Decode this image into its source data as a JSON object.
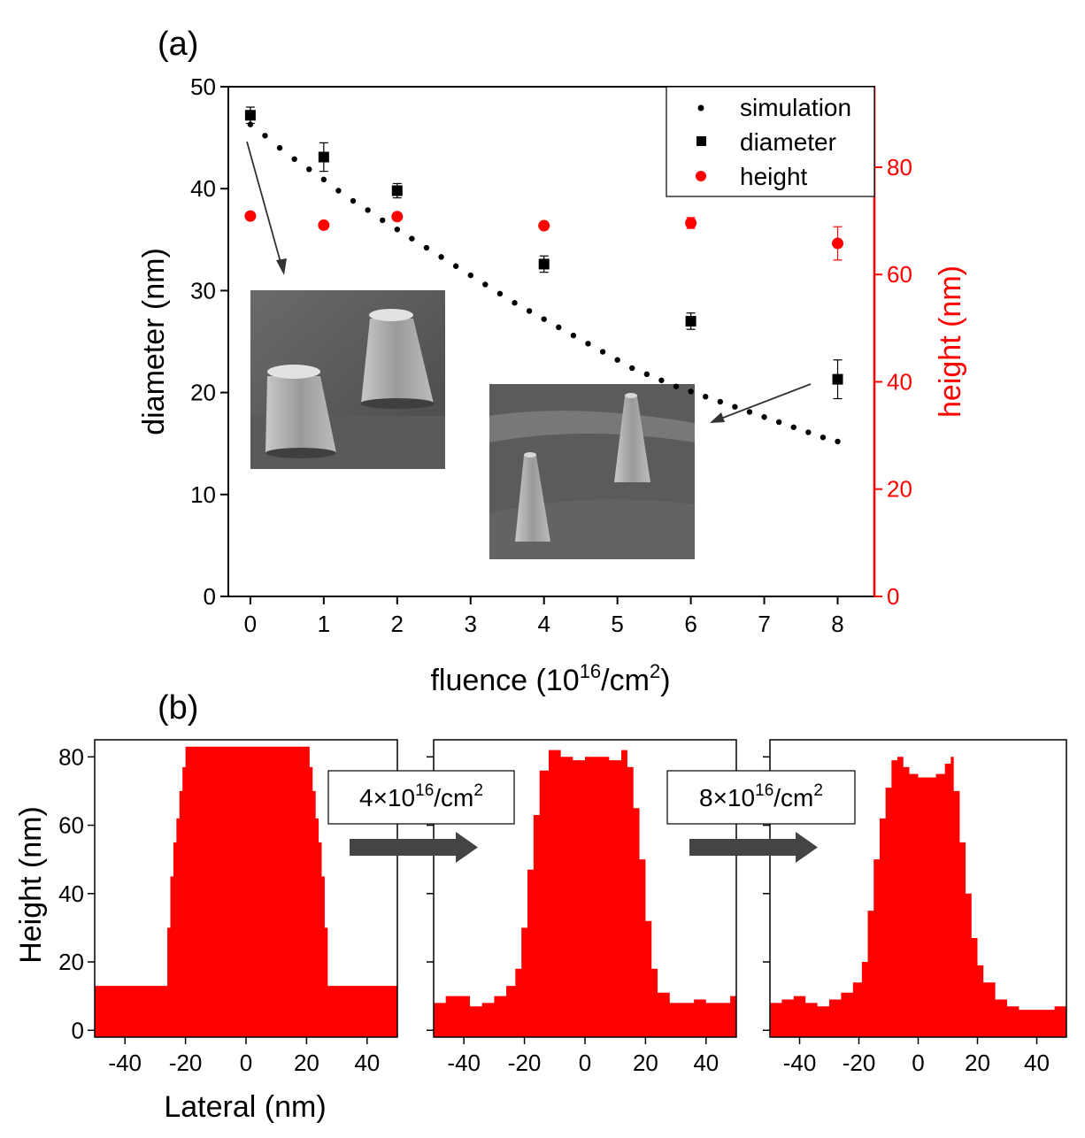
{
  "colors": {
    "black": "#000000",
    "red": "#ff0000",
    "sem_dark": "#555555",
    "sem_light": "#a8a8a8",
    "arrow_gray": "#444444"
  },
  "panel_a": {
    "label": "(a)",
    "xlabel_main": "fluence (10",
    "xlabel_sup1": "16",
    "xlabel_mid": "/cm",
    "xlabel_sup2": "2",
    "xlabel_end": ")",
    "ylabel_left": "diameter (nm)",
    "ylabel_right": "height (nm)",
    "legend": [
      "simulation",
      "diameter",
      "height"
    ],
    "inset_names": [
      "sem-image-fluence-0",
      "sem-image-fluence-8"
    ]
  },
  "chart_data": [
    {
      "type": "scatter",
      "panel": "a",
      "xlim": [
        -0.3,
        8.5
      ],
      "x_ticks": [
        "0",
        "1",
        "2",
        "3",
        "4",
        "5",
        "6",
        "7",
        "8"
      ],
      "ylim_left": [
        0,
        50
      ],
      "y_ticks_left": [
        "0",
        "10",
        "20",
        "30",
        "40",
        "50"
      ],
      "ylim_right": [
        0,
        95
      ],
      "y_ticks_right": [
        "0",
        "20",
        "40",
        "60",
        "80"
      ],
      "legend_position": "top-right",
      "series": [
        {
          "name": "simulation",
          "axis": "left",
          "color": "#000000",
          "marker": "dot",
          "x": [
            0,
            0.2,
            0.4,
            0.6,
            0.8,
            1.0,
            1.2,
            1.4,
            1.6,
            1.8,
            2.0,
            2.2,
            2.4,
            2.6,
            2.8,
            3.0,
            3.2,
            3.4,
            3.6,
            3.8,
            4.0,
            4.2,
            4.4,
            4.6,
            4.8,
            5.0,
            5.2,
            5.4,
            5.6,
            5.8,
            6.0,
            6.2,
            6.4,
            6.6,
            6.8,
            7.0,
            7.2,
            7.4,
            7.6,
            7.8,
            8.0
          ],
          "y": [
            46.3,
            45.2,
            44.0,
            42.9,
            41.9,
            40.9,
            39.8,
            38.8,
            37.9,
            36.9,
            36.0,
            35.1,
            34.2,
            33.3,
            32.4,
            31.5,
            30.6,
            29.7,
            28.8,
            28.0,
            27.2,
            26.4,
            25.6,
            24.8,
            24.0,
            23.2,
            22.4,
            21.8,
            21.2,
            20.6,
            20.1,
            19.6,
            19.1,
            18.6,
            18.1,
            17.6,
            17.1,
            16.6,
            16.1,
            15.6,
            15.2
          ]
        },
        {
          "name": "diameter",
          "axis": "left",
          "color": "#000000",
          "marker": "square",
          "x": [
            0,
            1,
            2,
            4,
            6,
            8
          ],
          "y": [
            47.2,
            43.1,
            39.8,
            32.6,
            27.0,
            21.3
          ],
          "error": [
            0.8,
            1.4,
            0.7,
            0.8,
            0.8,
            1.9
          ]
        },
        {
          "name": "height",
          "axis": "right",
          "color": "#ff0000",
          "marker": "circle",
          "x": [
            0,
            1,
            2,
            4,
            6,
            8
          ],
          "y": [
            70.9,
            69.2,
            70.8,
            69.1,
            69.6,
            65.8
          ],
          "error": [
            0,
            0,
            0,
            0,
            1.0,
            3.1
          ]
        }
      ]
    },
    {
      "type": "area",
      "panel": "b",
      "title": "",
      "xlim": [
        -50,
        50
      ],
      "x_ticks": [
        "-40",
        "-20",
        "0",
        "20",
        "40"
      ],
      "ylim": [
        -2,
        85
      ],
      "y_ticks": [
        "0",
        "20",
        "40",
        "60",
        "80"
      ],
      "profiles": [
        {
          "x": [
            -50,
            -27,
            -26,
            -25,
            -24,
            -23,
            -22,
            -21,
            -20,
            20,
            21,
            22,
            23,
            24,
            25,
            26,
            27,
            50
          ],
          "y": [
            13,
            13,
            30,
            45,
            55,
            62,
            70,
            77,
            83,
            83,
            77,
            70,
            62,
            55,
            45,
            30,
            13,
            13
          ]
        },
        {
          "x": [
            -50,
            -46,
            -42,
            -38,
            -34,
            -30,
            -26,
            -23,
            -21,
            -19,
            -17,
            -15,
            -12,
            -8,
            -4,
            0,
            4,
            8,
            12,
            14,
            16,
            18,
            20,
            22,
            24,
            28,
            32,
            36,
            40,
            44,
            48,
            50
          ],
          "y": [
            8,
            10,
            10,
            7,
            8,
            10,
            13,
            18,
            30,
            47,
            63,
            76,
            82,
            80,
            79,
            80,
            80,
            79,
            82,
            77,
            65,
            50,
            32,
            18,
            11,
            8,
            8,
            9,
            8,
            8,
            10,
            11
          ]
        },
        {
          "x": [
            -50,
            -46,
            -42,
            -38,
            -34,
            -30,
            -26,
            -22,
            -19,
            -17,
            -15,
            -13,
            -11,
            -9,
            -7,
            -5,
            -3,
            0,
            3,
            6,
            9,
            11,
            12,
            14,
            16,
            18,
            20,
            22,
            26,
            30,
            34,
            38,
            42,
            46,
            50
          ],
          "y": [
            8,
            9,
            10,
            8,
            7,
            9,
            11,
            14,
            20,
            35,
            50,
            62,
            71,
            79,
            80,
            77,
            75,
            74,
            74,
            75,
            78,
            80,
            70,
            55,
            40,
            27,
            19,
            14,
            9,
            7,
            6,
            6,
            6,
            7,
            9
          ]
        }
      ]
    }
  ],
  "panel_b": {
    "label": "(b)",
    "ylabel": "Height (nm)",
    "xlabel": "Lateral (nm)",
    "steps": [
      {
        "pre": "4×10",
        "sup1": "16",
        "mid": "/cm",
        "sup2": "2"
      },
      {
        "pre": "8×10",
        "sup1": "16",
        "mid": "/cm",
        "sup2": "2"
      }
    ]
  }
}
